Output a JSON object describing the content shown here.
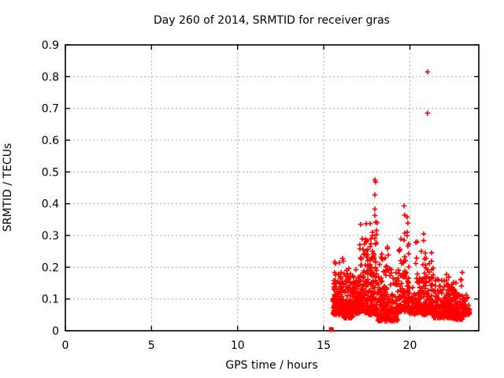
{
  "window": {
    "background": "#ffffff"
  },
  "chart_data": {
    "type": "scatter",
    "title": "Day 260 of 2014, SRMTID for receiver gras",
    "xlabel": "GPS time / hours",
    "ylabel": "SRMTID / TECUs",
    "xlim": [
      0,
      24
    ],
    "ylim": [
      0,
      0.9
    ],
    "x_ticks": [
      {
        "v": 0,
        "label": "0"
      },
      {
        "v": 5,
        "label": "5"
      },
      {
        "v": 10,
        "label": "10"
      },
      {
        "v": 15,
        "label": "15"
      },
      {
        "v": 20,
        "label": "20"
      }
    ],
    "y_ticks": [
      {
        "v": 0.0,
        "label": "0"
      },
      {
        "v": 0.1,
        "label": "0.1"
      },
      {
        "v": 0.2,
        "label": "0.2"
      },
      {
        "v": 0.3,
        "label": "0.3"
      },
      {
        "v": 0.4,
        "label": "0.4"
      },
      {
        "v": 0.5,
        "label": "0.5"
      },
      {
        "v": 0.6,
        "label": "0.6"
      },
      {
        "v": 0.7,
        "label": "0.7"
      },
      {
        "v": 0.8,
        "label": "0.8"
      },
      {
        "v": 0.9,
        "label": "0.9"
      }
    ],
    "grid": true,
    "legend": "none",
    "marker": {
      "shape": "plus",
      "color": "#ff0000",
      "size": 7,
      "stroke_width": 1.6
    },
    "start_marker": {
      "shape": "filled-square",
      "color": "#ff0000",
      "x": 15.44,
      "y": 0.004,
      "size": 6
    },
    "notable_points": [
      [
        21.01,
        0.815
      ],
      [
        21.04,
        0.685
      ],
      [
        17.97,
        0.475
      ],
      [
        17.99,
        0.468
      ],
      [
        17.97,
        0.428
      ],
      [
        17.98,
        0.383
      ],
      [
        17.97,
        0.363
      ],
      [
        17.99,
        0.342
      ],
      [
        19.65,
        0.393
      ],
      [
        19.72,
        0.364
      ],
      [
        19.86,
        0.358
      ],
      [
        19.88,
        0.339
      ],
      [
        21.26,
        0.246
      ],
      [
        21.27,
        0.219
      ],
      [
        17.13,
        0.335
      ],
      [
        17.46,
        0.337
      ],
      [
        20.78,
        0.305
      ],
      [
        20.8,
        0.284
      ]
    ],
    "dense_band": {
      "description": "Dense mass of SRMTID samples between ~15.5h and ~23.4h GPS time, mostly 0.04-0.25 TECUs, no data before 15.5h. Clusters given as [hour_start, hour_end, n_points, value_min, value_max].",
      "seed": 20142600,
      "clusters": [
        [
          15.55,
          16.15,
          150,
          0.05,
          0.235
        ],
        [
          16.15,
          16.7,
          130,
          0.04,
          0.225
        ],
        [
          16.7,
          17.05,
          80,
          0.055,
          0.2
        ],
        [
          17.05,
          17.6,
          120,
          0.055,
          0.345
        ],
        [
          17.6,
          18.12,
          130,
          0.05,
          0.4
        ],
        [
          18.12,
          18.7,
          120,
          0.03,
          0.3
        ],
        [
          18.7,
          19.35,
          90,
          0.03,
          0.24
        ],
        [
          19.35,
          19.95,
          110,
          0.06,
          0.37
        ],
        [
          19.95,
          20.3,
          50,
          0.05,
          0.16
        ],
        [
          20.3,
          21.0,
          120,
          0.05,
          0.31
        ],
        [
          21.0,
          21.4,
          70,
          0.05,
          0.22
        ],
        [
          21.4,
          22.0,
          110,
          0.04,
          0.19
        ],
        [
          22.0,
          22.5,
          110,
          0.04,
          0.2
        ],
        [
          22.5,
          23.05,
          110,
          0.035,
          0.19
        ],
        [
          23.05,
          23.45,
          60,
          0.05,
          0.125
        ]
      ]
    },
    "colors": {
      "points": "#ff0000",
      "grid": "#ababab",
      "axis": "#000000",
      "text": "#000000",
      "background": "#ffffff"
    }
  }
}
